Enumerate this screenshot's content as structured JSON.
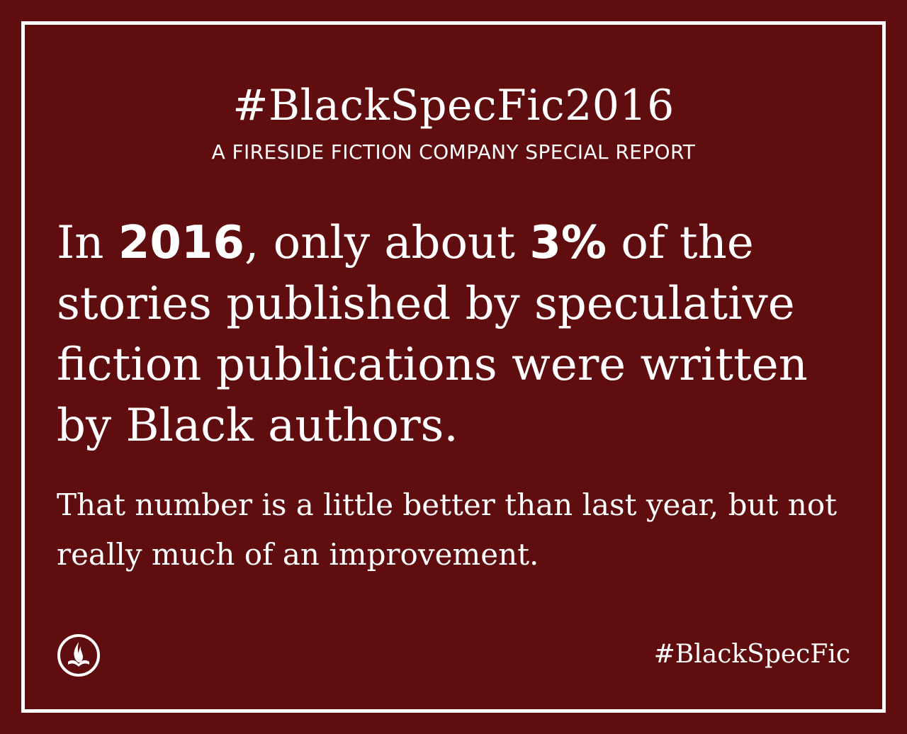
{
  "header": {
    "title": "#BlackSpecFic2016",
    "subtitle": "A FIRESIDE FICTION COMPANY SPECIAL REPORT"
  },
  "headline": {
    "part1": "In ",
    "year": "2016",
    "part2": ", only about ",
    "percent": "3%",
    "part3": " of the stories published by speculative fiction publications were written by Black authors."
  },
  "body": {
    "text": "That number is a little better than last year, but not really much of an improvement."
  },
  "footer": {
    "logo_icon": "fireside-flame-book-icon",
    "hashtag": "#BlackSpecFic"
  },
  "colors": {
    "background": "#600d0f",
    "foreground": "#ffffff"
  }
}
